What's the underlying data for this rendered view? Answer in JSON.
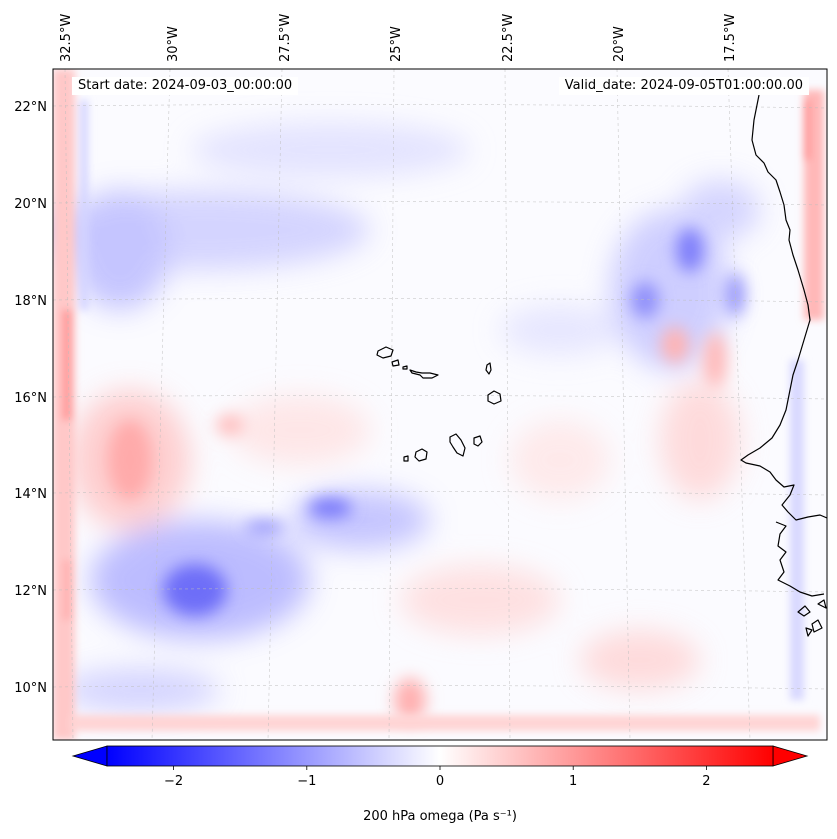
{
  "map": {
    "lon_labels": [
      "32.5°W",
      "30°W",
      "27.5°W",
      "25°W",
      "22.5°W",
      "20°W",
      "17.5°W"
    ],
    "lat_labels": [
      "22°N",
      "20°N",
      "18°N",
      "16°N",
      "14°N",
      "12°N",
      "10°N"
    ],
    "start_date": "Start date: 2024-09-03_00:00:00",
    "valid_date": "Valid_date: 2024-09-05T01:00:00.00"
  },
  "colorbar": {
    "label": "200 hPa omega (Pa s⁻¹)",
    "tick_labels": [
      "−2",
      "−1",
      "0",
      "1",
      "2"
    ],
    "tick_values": [
      -2,
      -1,
      0,
      1,
      2
    ],
    "range": [
      -2.5,
      2.5
    ],
    "colormap": "bwr",
    "colors": {
      "negative": "#0000ff",
      "zero": "#ffffff",
      "positive": "#ff0000"
    }
  }
}
